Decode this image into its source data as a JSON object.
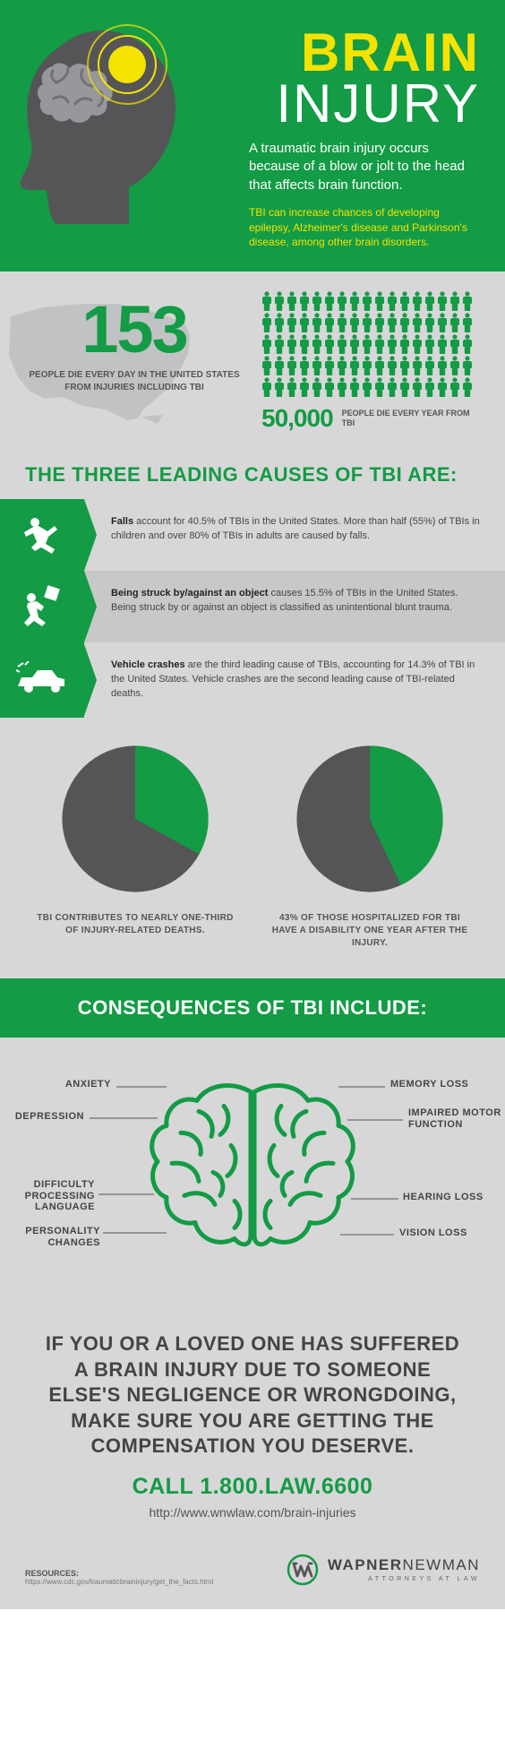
{
  "hero": {
    "title_line1": "BRAIN",
    "title_line2": "INJURY",
    "body1": "A traumatic brain injury occurs because of a blow or jolt to the head that affects brain function.",
    "body2": "TBI can increase chances of developing epilepsy, Alzheimer's disease and Parkinson's disease, among other brain disorders.",
    "colors": {
      "bg": "#139b45",
      "title_accent": "#f4e300",
      "title_main": "#ffffff"
    }
  },
  "stats": {
    "left_number": "153",
    "left_caption": "PEOPLE DIE EVERY DAY IN THE UNITED STATES FROM INJURIES INCLUDING TBI",
    "right_number": "50,000",
    "right_caption": "PEOPLE DIE EVERY YEAR FROM TBI",
    "people_count": 85,
    "people_per_row": 17,
    "people_color": "#139b45"
  },
  "causes": {
    "header": "THE THREE LEADING CAUSES OF TBI ARE:",
    "rows": [
      {
        "bold": "Falls",
        "text": " account for 40.5% of TBIs in the United States. More than half (55%) of TBIs in children and over 80% of TBIs in adults are caused by falls.",
        "icon": "fall"
      },
      {
        "bold": "Being struck by/against an object",
        "text": " causes 15.5% of TBIs in the United States. Being struck by or against an object is classified as unintentional blunt trauma.",
        "icon": "struck"
      },
      {
        "bold": "Vehicle crashes",
        "text": " are the third leading cause of TBIs, accounting for 14.3% of TBI in the United States. Vehicle crashes are the second leading cause of TBI-related deaths.",
        "icon": "vehicle"
      }
    ]
  },
  "pies": {
    "left": {
      "caption": "TBI CONTRIBUTES TO NEARLY ONE-THIRD OF INJURY-RELATED DEATHS.",
      "slice_pct": 33,
      "slice_color": "#139b45",
      "rest_color": "#555556"
    },
    "right": {
      "caption": "43% OF THOSE HOSPITALIZED FOR TBI HAVE A DISABILITY ONE YEAR AFTER THE INJURY.",
      "slice_pct": 43,
      "slice_color": "#139b45",
      "rest_color": "#555556"
    }
  },
  "consequences": {
    "header": "CONSEQUENCES OF TBI INCLUDE:",
    "labels_left": [
      "ANXIETY",
      "DEPRESSION",
      "DIFFICULTY PROCESSING LANGUAGE",
      "PERSONALITY CHANGES"
    ],
    "labels_right": [
      "MEMORY LOSS",
      "IMPAIRED MOTOR FUNCTION",
      "HEARING LOSS",
      "VISION LOSS"
    ]
  },
  "cta": {
    "big": "IF YOU OR A LOVED ONE HAS SUFFERED A BRAIN INJURY DUE TO SOMEONE ELSE'S NEGLIGENCE OR WRONGDOING, MAKE SURE YOU ARE GETTING THE COMPENSATION YOU DESERVE.",
    "call": "CALL 1.800.LAW.6600",
    "url": "http://www.wnwlaw.com/brain-injuries"
  },
  "footer": {
    "resources_label": "RESOURCES:",
    "resources_url": "https://www.cdc.gov/traumaticbraininjury/get_the_facts.html",
    "logo_bold": "WAPNER",
    "logo_light": "NEWMAN",
    "logo_sub": "ATTORNEYS AT LAW"
  }
}
